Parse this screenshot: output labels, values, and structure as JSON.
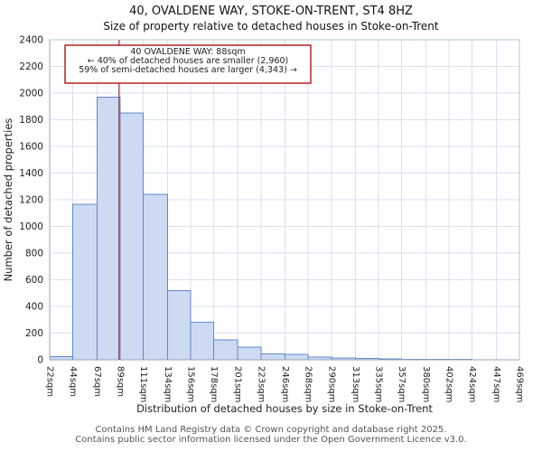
{
  "title": "40, OVALDENE WAY, STOKE-ON-TRENT, ST4 8HZ",
  "subtitle": "Size of property relative to detached houses in Stoke-on-Trent",
  "footer": {
    "line1": "Contains HM Land Registry data © Crown copyright and database right 2025.",
    "line2": "Contains public sector information licensed under the Open Government Licence v3.0."
  },
  "chart_data": {
    "type": "bar",
    "xlabel": "Distribution of detached houses by size in Stoke-on-Trent",
    "ylabel": "Number of detached properties",
    "ylim": [
      0,
      2400
    ],
    "y_tick_labels": [
      "0",
      "200",
      "400",
      "600",
      "800",
      "1000",
      "1200",
      "1400",
      "1600",
      "1800",
      "2000",
      "2200",
      "2400"
    ],
    "bin_edges_sqm": [
      22,
      44,
      67,
      89,
      111,
      134,
      156,
      178,
      201,
      223,
      246,
      268,
      290,
      313,
      335,
      357,
      380,
      402,
      424,
      447,
      469
    ],
    "x_tick_labels": [
      "22sqm",
      "44sqm",
      "67sqm",
      "89sqm",
      "111sqm",
      "134sqm",
      "156sqm",
      "178sqm",
      "201sqm",
      "223sqm",
      "246sqm",
      "268sqm",
      "290sqm",
      "313sqm",
      "335sqm",
      "357sqm",
      "380sqm",
      "402sqm",
      "424sqm",
      "447sqm",
      "469sqm"
    ],
    "values": [
      25,
      1165,
      1970,
      1850,
      1240,
      520,
      280,
      150,
      95,
      45,
      40,
      20,
      15,
      10,
      8,
      5,
      5,
      5,
      0,
      0
    ],
    "marker": {
      "value_sqm": 88,
      "color": "#8b1a1a"
    },
    "annotation": {
      "lines": [
        "40 OVALDENE WAY: 88sqm",
        "← 40% of detached houses are smaller (2,960)",
        "59% of semi-detached houses are larger (4,343) →"
      ],
      "border_color": "#aa0000"
    },
    "colors": {
      "bar_fill": "#ccdaf2",
      "bar_stroke": "#5f89c9",
      "grid": "#d9e1f2",
      "axis": "#9aa5b5",
      "plot_border": "#b8c4d8"
    }
  }
}
